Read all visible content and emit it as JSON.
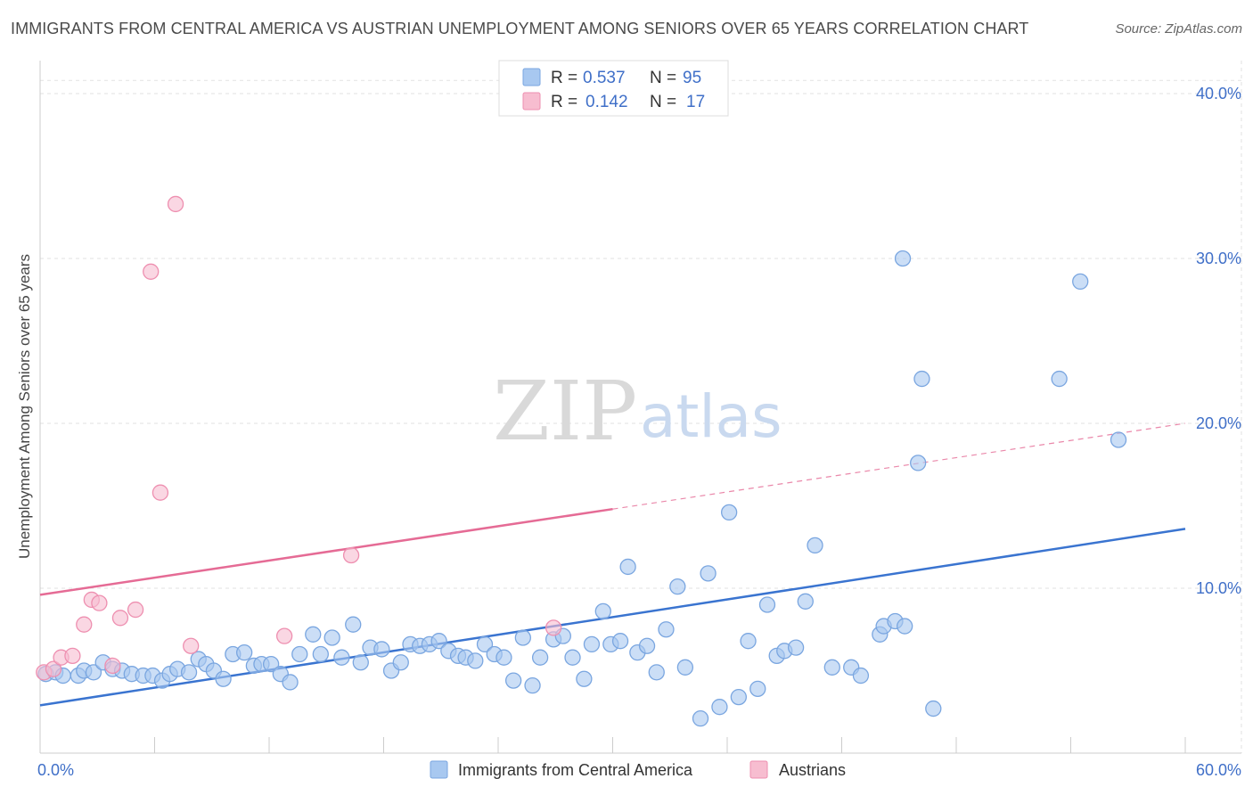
{
  "title": "IMMIGRANTS FROM CENTRAL AMERICA VS AUSTRIAN UNEMPLOYMENT AMONG SENIORS OVER 65 YEARS CORRELATION CHART",
  "source": "Source: ZipAtlas.com",
  "watermark": {
    "zip": "ZIP",
    "atlas": "atlas"
  },
  "legend": {
    "rows": [
      {
        "r_label": "R =",
        "r_value": "0.537",
        "n_label": "N =",
        "n_value": "95",
        "color": "#a8c8f0",
        "stroke": "#7aa6e0"
      },
      {
        "r_label": "R =",
        "r_value": "0.142",
        "n_label": "N =",
        "n_value": "17",
        "color": "#f7bdd0",
        "stroke": "#ee8fb0"
      }
    ]
  },
  "bottom_legend": [
    {
      "label": "Immigrants from Central America",
      "color": "#a8c8f0",
      "stroke": "#7aa6e0"
    },
    {
      "label": "Austrians",
      "color": "#f7bdd0",
      "stroke": "#ee8fb0"
    }
  ],
  "chart_data": {
    "type": "scatter",
    "title": "IMMIGRANTS FROM CENTRAL AMERICA VS AUSTRIAN UNEMPLOYMENT AMONG SENIORS OVER 65 YEARS CORRELATION CHART",
    "xlabel": "",
    "ylabel": "Unemployment Among Seniors over 65 years",
    "xlim": [
      0,
      60
    ],
    "ylim": [
      0,
      42
    ],
    "x_tick_labels": [
      {
        "value": 0,
        "label": "0.0%"
      },
      {
        "value": 60,
        "label": "60.0%"
      }
    ],
    "y_tick_labels": [
      {
        "value": 10,
        "label": "10.0%"
      },
      {
        "value": 20,
        "label": "20.0%"
      },
      {
        "value": 30,
        "label": "30.0%"
      },
      {
        "value": 40,
        "label": "40.0%"
      }
    ],
    "grid": true,
    "legend_position": "top-center",
    "series": [
      {
        "name": "Immigrants from Central America",
        "color": "#a8c8f0",
        "stroke": "#7aa6e0",
        "points": [
          [
            0.3,
            4.8
          ],
          [
            0.8,
            4.9
          ],
          [
            1.2,
            4.7
          ],
          [
            2.0,
            4.7
          ],
          [
            2.3,
            5.0
          ],
          [
            2.8,
            4.9
          ],
          [
            3.3,
            5.5
          ],
          [
            3.8,
            5.1
          ],
          [
            4.3,
            5.0
          ],
          [
            4.8,
            4.8
          ],
          [
            5.4,
            4.7
          ],
          [
            5.9,
            4.7
          ],
          [
            6.4,
            4.4
          ],
          [
            6.8,
            4.8
          ],
          [
            7.2,
            5.1
          ],
          [
            7.8,
            4.9
          ],
          [
            8.3,
            5.7
          ],
          [
            8.7,
            5.4
          ],
          [
            9.1,
            5.0
          ],
          [
            9.6,
            4.5
          ],
          [
            10.1,
            6.0
          ],
          [
            10.7,
            6.1
          ],
          [
            11.2,
            5.3
          ],
          [
            11.6,
            5.4
          ],
          [
            12.1,
            5.4
          ],
          [
            12.6,
            4.8
          ],
          [
            13.1,
            4.3
          ],
          [
            13.6,
            6.0
          ],
          [
            14.3,
            7.2
          ],
          [
            14.7,
            6.0
          ],
          [
            15.3,
            7.0
          ],
          [
            15.8,
            5.8
          ],
          [
            16.4,
            7.8
          ],
          [
            16.8,
            5.5
          ],
          [
            17.3,
            6.4
          ],
          [
            17.9,
            6.3
          ],
          [
            18.4,
            5.0
          ],
          [
            18.9,
            5.5
          ],
          [
            19.4,
            6.6
          ],
          [
            19.9,
            6.5
          ],
          [
            20.4,
            6.6
          ],
          [
            20.9,
            6.8
          ],
          [
            21.4,
            6.2
          ],
          [
            21.9,
            5.9
          ],
          [
            22.3,
            5.8
          ],
          [
            22.8,
            5.6
          ],
          [
            23.3,
            6.6
          ],
          [
            23.8,
            6.0
          ],
          [
            24.3,
            5.8
          ],
          [
            24.8,
            4.4
          ],
          [
            25.3,
            7.0
          ],
          [
            25.8,
            4.1
          ],
          [
            26.2,
            5.8
          ],
          [
            26.9,
            6.9
          ],
          [
            27.4,
            7.1
          ],
          [
            27.9,
            5.8
          ],
          [
            28.5,
            4.5
          ],
          [
            28.9,
            6.6
          ],
          [
            29.5,
            8.6
          ],
          [
            29.9,
            6.6
          ],
          [
            30.4,
            6.8
          ],
          [
            30.8,
            11.3
          ],
          [
            31.3,
            6.1
          ],
          [
            31.8,
            6.5
          ],
          [
            32.3,
            4.9
          ],
          [
            32.8,
            7.5
          ],
          [
            33.4,
            10.1
          ],
          [
            33.8,
            5.2
          ],
          [
            34.6,
            2.1
          ],
          [
            35.0,
            10.9
          ],
          [
            35.6,
            2.8
          ],
          [
            36.1,
            14.6
          ],
          [
            36.6,
            3.4
          ],
          [
            37.1,
            6.8
          ],
          [
            37.6,
            3.9
          ],
          [
            38.1,
            9.0
          ],
          [
            38.6,
            5.9
          ],
          [
            39.0,
            6.2
          ],
          [
            39.6,
            6.4
          ],
          [
            40.1,
            9.2
          ],
          [
            40.6,
            12.6
          ],
          [
            41.5,
            5.2
          ],
          [
            42.5,
            5.2
          ],
          [
            43.0,
            4.7
          ],
          [
            44.0,
            7.2
          ],
          [
            44.2,
            7.7
          ],
          [
            44.8,
            8.0
          ],
          [
            45.3,
            7.7
          ],
          [
            45.2,
            30.0
          ],
          [
            46.2,
            22.7
          ],
          [
            46.0,
            17.6
          ],
          [
            46.8,
            2.7
          ],
          [
            53.4,
            22.7
          ],
          [
            54.5,
            28.6
          ],
          [
            56.5,
            19.0
          ]
        ]
      },
      {
        "name": "Austrians",
        "color": "#f7bdd0",
        "stroke": "#ee8fb0",
        "points": [
          [
            0.2,
            4.9
          ],
          [
            0.7,
            5.1
          ],
          [
            1.1,
            5.8
          ],
          [
            1.7,
            5.9
          ],
          [
            2.3,
            7.8
          ],
          [
            2.7,
            9.3
          ],
          [
            3.1,
            9.1
          ],
          [
            3.8,
            5.3
          ],
          [
            4.2,
            8.2
          ],
          [
            5.0,
            8.7
          ],
          [
            5.8,
            29.2
          ],
          [
            6.3,
            15.8
          ],
          [
            7.1,
            33.3
          ],
          [
            7.9,
            6.5
          ],
          [
            12.8,
            7.1
          ],
          [
            16.3,
            12.0
          ],
          [
            26.9,
            7.6
          ]
        ]
      }
    ],
    "trendlines": [
      {
        "series": "Immigrants from Central America",
        "x0": 0,
        "y0": 2.9,
        "x1": 60,
        "y1": 13.6,
        "color": "#3a74d0",
        "dashed_from": null
      },
      {
        "series": "Austrians",
        "x0": 0,
        "y0": 9.6,
        "x1": 60,
        "y1": 20.0,
        "color": "#e56b95",
        "solid_until": 30
      }
    ]
  }
}
